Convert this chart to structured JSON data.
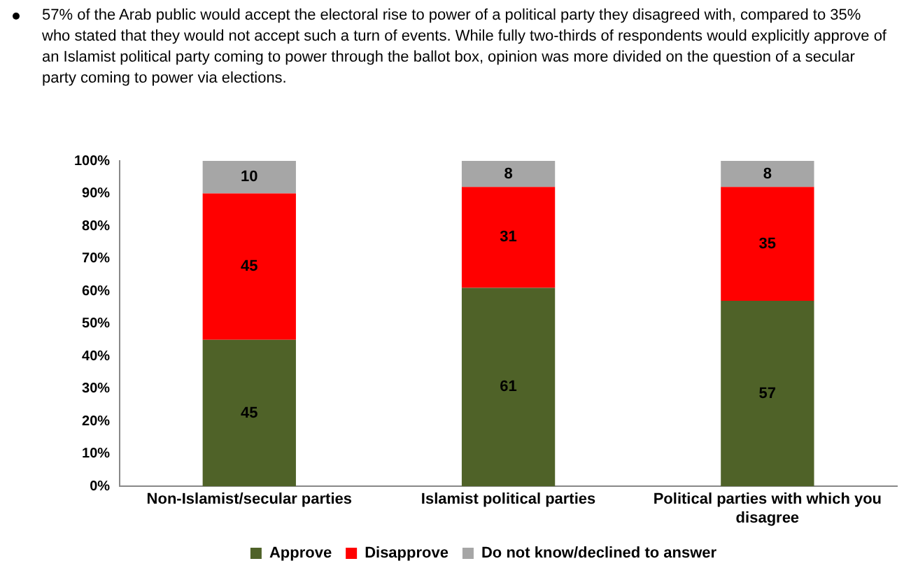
{
  "chart_data": {
    "type": "bar",
    "title": "57% of the Arab public would accept the electoral rise to power of a political party they disagreed with, compared to 35% who stated that they would not accept such a turn of events. While fully two-thirds of respondents would explicitly approve of an Islamist political party coming to power through the ballot box, opinion was more divided on the question of a secular party coming to power via elections.",
    "categories": [
      "Non-Islamist/secular parties",
      "Islamist political parties",
      "Political parties with which you disagree"
    ],
    "series": [
      {
        "name": "Approve",
        "color": "#4f6228",
        "values": [
          45,
          61,
          57
        ]
      },
      {
        "name": "Disapprove",
        "color": "#ff0000",
        "values": [
          45,
          31,
          35
        ]
      },
      {
        "name": "Do not know/declined to answer",
        "color": "#a6a6a6",
        "values": [
          10,
          8,
          8
        ]
      }
    ],
    "stacked": true,
    "data_labels": true,
    "grid": false,
    "legend": "bottom",
    "ylim": [
      0,
      100
    ],
    "yticks": [
      {
        "value": 0,
        "label": "0%"
      },
      {
        "value": 10,
        "label": "10%"
      },
      {
        "value": 20,
        "label": "20%"
      },
      {
        "value": 30,
        "label": "30%"
      },
      {
        "value": 40,
        "label": "40%"
      },
      {
        "value": 50,
        "label": "50%"
      },
      {
        "value": 60,
        "label": "60%"
      },
      {
        "value": 70,
        "label": "70%"
      },
      {
        "value": 80,
        "label": "80%"
      },
      {
        "value": 90,
        "label": "90%"
      },
      {
        "value": 100,
        "label": "100%"
      }
    ]
  }
}
